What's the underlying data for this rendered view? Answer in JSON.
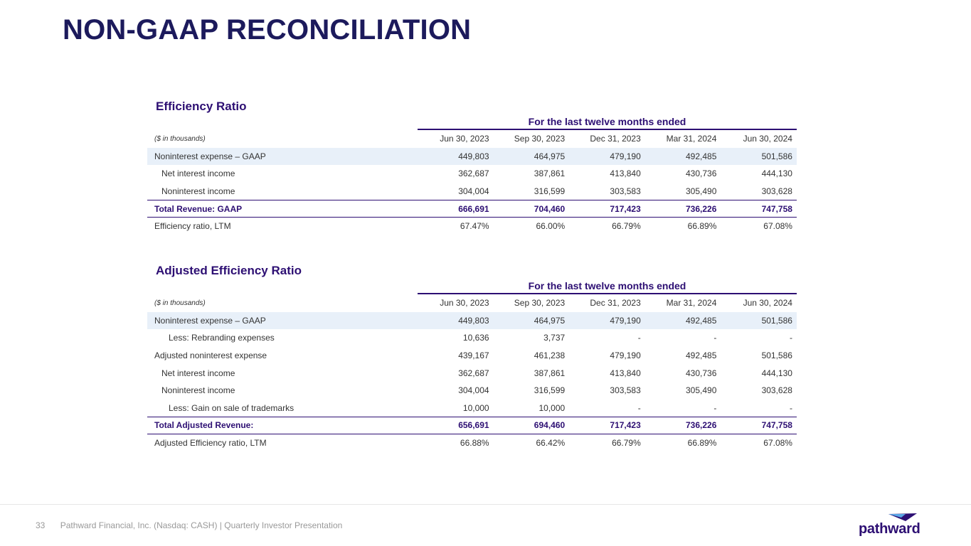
{
  "title": "NON-GAAP RECONCILIATION",
  "tables": [
    {
      "heading": "Efficiency Ratio",
      "period_label": "For the last twelve months ended",
      "units": "($ in thousands)",
      "columns": [
        "Jun 30, 2023",
        "Sep 30, 2023",
        "Dec 31, 2023",
        "Mar 31, 2024",
        "Jun 30, 2024"
      ],
      "rows": [
        {
          "label": "Noninterest expense – GAAP",
          "style": "shade",
          "values": [
            "449,803",
            "464,975",
            "479,190",
            "492,485",
            "501,586"
          ]
        },
        {
          "label": "Net interest income",
          "style": "ind",
          "values": [
            "362,687",
            "387,861",
            "413,840",
            "430,736",
            "444,130"
          ]
        },
        {
          "label": "Noninterest income",
          "style": "ind",
          "values": [
            "304,004",
            "316,599",
            "303,583",
            "305,490",
            "303,628"
          ]
        },
        {
          "label": "Total Revenue: GAAP",
          "style": "tot",
          "values": [
            "666,691",
            "704,460",
            "717,423",
            "736,226",
            "747,758"
          ]
        },
        {
          "label": "Efficiency ratio, LTM",
          "style": "",
          "values": [
            "67.47%",
            "66.00%",
            "66.79%",
            "66.89%",
            "67.08%"
          ]
        }
      ]
    },
    {
      "heading": "Adjusted Efficiency Ratio",
      "period_label": "For the last twelve months ended",
      "units": "($ in thousands)",
      "columns": [
        "Jun 30, 2023",
        "Sep 30, 2023",
        "Dec 31, 2023",
        "Mar 31, 2024",
        "Jun 30, 2024"
      ],
      "rows": [
        {
          "label": "Noninterest expense – GAAP",
          "style": "shade",
          "values": [
            "449,803",
            "464,975",
            "479,190",
            "492,485",
            "501,586"
          ]
        },
        {
          "label": "Less: Rebranding expenses",
          "style": "ind2",
          "values": [
            "10,636",
            "3,737",
            "-",
            "-",
            "-"
          ]
        },
        {
          "label": "Adjusted noninterest expense",
          "style": "",
          "values": [
            "439,167",
            "461,238",
            "479,190",
            "492,485",
            "501,586"
          ]
        },
        {
          "label": "Net interest income",
          "style": "ind",
          "values": [
            "362,687",
            "387,861",
            "413,840",
            "430,736",
            "444,130"
          ]
        },
        {
          "label": "Noninterest income",
          "style": "ind",
          "values": [
            "304,004",
            "316,599",
            "303,583",
            "305,490",
            "303,628"
          ]
        },
        {
          "label": "Less: Gain on sale of trademarks",
          "style": "ind2",
          "values": [
            "10,000",
            "10,000",
            "-",
            "-",
            "-"
          ]
        },
        {
          "label": "Total Adjusted Revenue:",
          "style": "tot",
          "values": [
            "656,691",
            "694,460",
            "717,423",
            "736,226",
            "747,758"
          ]
        },
        {
          "label": "Adjusted Efficiency ratio, LTM",
          "style": "",
          "values": [
            "66.88%",
            "66.42%",
            "66.79%",
            "66.89%",
            "67.08%"
          ]
        }
      ]
    }
  ],
  "footer": {
    "page": "33",
    "text": "Pathward Financial, Inc. (Nasdaq: CASH) | Quarterly Investor Presentation"
  },
  "logo": {
    "text": "pathward"
  }
}
